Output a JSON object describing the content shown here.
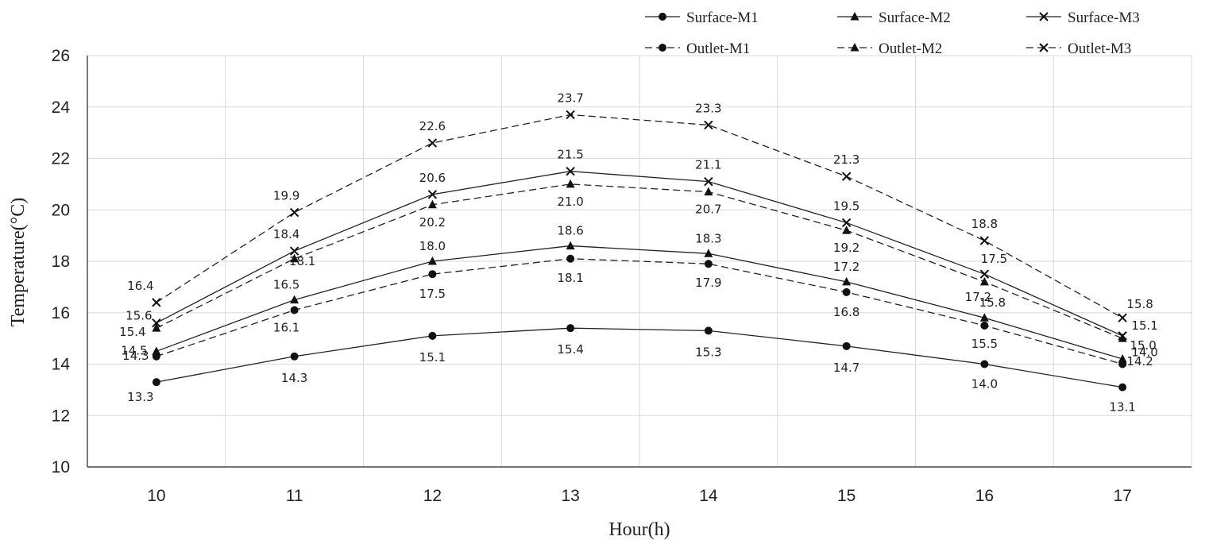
{
  "chart_data": {
    "type": "line",
    "xlabel": "Hour(h)",
    "ylabel": "Temperature(°C)",
    "x": [
      10,
      11,
      12,
      13,
      14,
      15,
      16,
      17
    ],
    "xlim": [
      9.5,
      17.5
    ],
    "ylim": [
      10,
      26
    ],
    "yticks": [
      10,
      12,
      14,
      16,
      18,
      20,
      22,
      24,
      26
    ],
    "grid": "vertical and horizontal, light gray",
    "legend_position": "top",
    "series": [
      {
        "name": "Surface-M1",
        "marker": "circle",
        "dash": "solid",
        "values": [
          13.3,
          14.3,
          15.1,
          15.4,
          15.3,
          14.7,
          14.0,
          13.1
        ]
      },
      {
        "name": "Surface-M2",
        "marker": "triangle",
        "dash": "solid",
        "values": [
          14.5,
          16.5,
          18.0,
          18.6,
          18.3,
          17.2,
          15.8,
          14.2
        ]
      },
      {
        "name": "Surface-M3",
        "marker": "cross",
        "dash": "solid",
        "values": [
          15.6,
          18.4,
          20.6,
          21.5,
          21.1,
          19.5,
          17.5,
          15.1
        ]
      },
      {
        "name": "Outlet-M1",
        "marker": "circle",
        "dash": "dashed",
        "values": [
          14.3,
          16.1,
          17.5,
          18.1,
          17.9,
          16.8,
          15.5,
          14.0
        ]
      },
      {
        "name": "Outlet-M2",
        "marker": "triangle",
        "dash": "dashed",
        "values": [
          15.4,
          18.1,
          20.2,
          21.0,
          20.7,
          19.2,
          17.2,
          15.0
        ]
      },
      {
        "name": "Outlet-M3",
        "marker": "cross",
        "dash": "dashed",
        "values": [
          16.4,
          19.9,
          22.6,
          23.7,
          23.3,
          21.3,
          18.8,
          15.8
        ]
      }
    ],
    "data_labels": [
      {
        "text": "13.3"
      },
      {
        "text": "14.3"
      },
      {
        "text": "15.1"
      },
      {
        "text": "15.4"
      },
      {
        "text": "15.3"
      },
      {
        "text": "14.7"
      },
      {
        "text": "14.0"
      },
      {
        "text": "13.1"
      },
      {
        "text": "14.5"
      },
      {
        "text": "16.5"
      },
      {
        "text": "18.0"
      },
      {
        "text": "18.6"
      },
      {
        "text": "18.3"
      },
      {
        "text": "17.2"
      },
      {
        "text": "15.8"
      },
      {
        "text": "14.2"
      },
      {
        "text": "15.6"
      },
      {
        "text": "18.4"
      },
      {
        "text": "20.6"
      },
      {
        "text": "21.5"
      },
      {
        "text": "21.1"
      },
      {
        "text": "19.5"
      },
      {
        "text": "17.5"
      },
      {
        "text": "15.1"
      },
      {
        "text": "14.3"
      },
      {
        "text": "16.1"
      },
      {
        "text": "17.5"
      },
      {
        "text": "18.1"
      },
      {
        "text": "17.9"
      },
      {
        "text": "16.8"
      },
      {
        "text": "15.5"
      },
      {
        "text": "14.0"
      },
      {
        "text": "15.4"
      },
      {
        "text": "18.1"
      },
      {
        "text": "20.2"
      },
      {
        "text": "21.0"
      },
      {
        "text": "20.7"
      },
      {
        "text": "19.2"
      },
      {
        "text": "17.2"
      },
      {
        "text": "15.0"
      },
      {
        "text": "16.4"
      },
      {
        "text": "19.9"
      },
      {
        "text": "22.6"
      },
      {
        "text": "23.7"
      },
      {
        "text": "23.3"
      },
      {
        "text": "21.3"
      },
      {
        "text": "18.8"
      },
      {
        "text": "15.8"
      }
    ]
  }
}
